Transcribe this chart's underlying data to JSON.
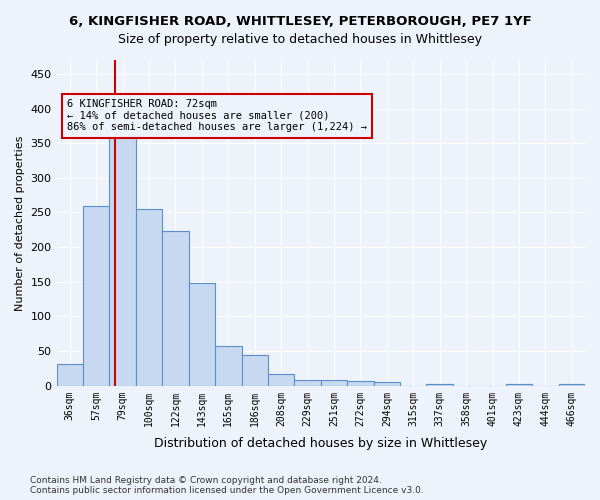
{
  "title": "6, KINGFISHER ROAD, WHITTLESEY, PETERBOROUGH, PE7 1YF",
  "subtitle": "Size of property relative to detached houses in Whittlesey",
  "xlabel": "Distribution of detached houses by size in Whittlesey",
  "ylabel": "Number of detached properties",
  "bar_values": [
    32,
    260,
    362,
    255,
    224,
    148,
    57,
    45,
    17,
    8,
    8,
    7,
    5,
    0,
    2,
    0,
    0,
    3,
    0,
    3
  ],
  "x_labels": [
    "36sqm",
    "57sqm",
    "79sqm",
    "100sqm",
    "122sqm",
    "143sqm",
    "165sqm",
    "186sqm",
    "208sqm",
    "229sqm",
    "251sqm",
    "272sqm",
    "294sqm",
    "315sqm",
    "337sqm",
    "358sqm",
    "401sqm",
    "423sqm",
    "444sqm",
    "466sqm"
  ],
  "bar_color": "#c7d9f0",
  "bar_edge_color": "#5b8fc7",
  "annotation_box_text": "6 KINGFISHER ROAD: 72sqm\n← 14% of detached houses are smaller (200)\n86% of semi-detached houses are larger (1,224) →",
  "vline_x": 1.7,
  "vline_color": "#cc0000",
  "ylim": [
    0,
    470
  ],
  "yticks": [
    0,
    50,
    100,
    150,
    200,
    250,
    300,
    350,
    400,
    450
  ],
  "footer_text": "Contains HM Land Registry data © Crown copyright and database right 2024.\nContains public sector information licensed under the Open Government Licence v3.0.",
  "bg_color": "#eef2fb"
}
